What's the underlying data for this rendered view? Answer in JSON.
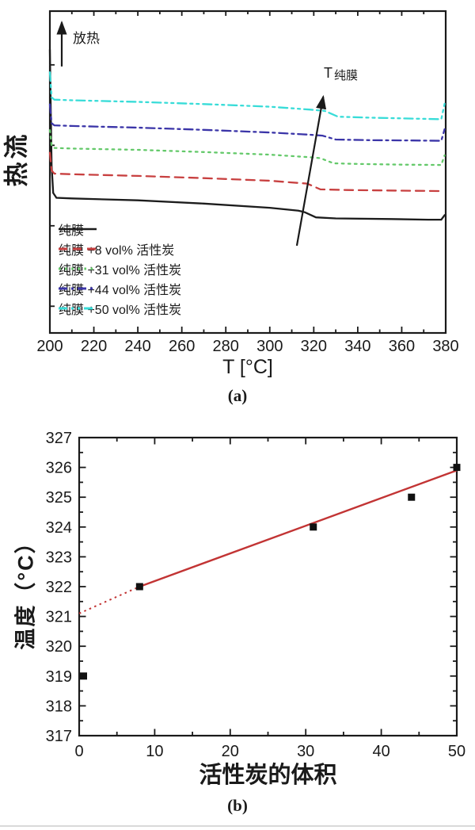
{
  "figure": {
    "background": "#ffffff",
    "ink_color": "#1a1a1a"
  },
  "chart_data": [
    {
      "id": "a",
      "type": "line",
      "caption": "(a)",
      "xlabel": "T [°C]",
      "ylabel": "热流",
      "xlim": [
        200,
        380
      ],
      "ylim": [
        0,
        100
      ],
      "x_ticks": [
        200,
        220,
        240,
        260,
        280,
        300,
        320,
        340,
        360,
        380
      ],
      "x_minor_step": 10,
      "left_tick_values": [
        8.3,
        33.3,
        58.3,
        83.3
      ],
      "grid": false,
      "legend_position": "lower-left",
      "annotations": {
        "exothermic_label": "放热",
        "arrow_label_main": "T",
        "arrow_label_sub": "纯膜"
      },
      "arrows": [
        {
          "name": "exothermic-up-arrow",
          "from": [
            205.4,
            82.8
          ],
          "to": [
            205.4,
            96.5
          ]
        },
        {
          "name": "trend-arrow",
          "from": [
            312.3,
            27.1
          ],
          "to": [
            324.3,
            73.4
          ]
        }
      ],
      "series": [
        {
          "name": "纯膜",
          "color": "#1c1c1c",
          "dash": "solid",
          "points": [
            [
              200,
              88
            ],
            [
              200.8,
              52
            ],
            [
              201.5,
              43.5
            ],
            [
              203,
              42
            ],
            [
              210,
              41.8
            ],
            [
              240,
              41.2
            ],
            [
              270,
              40.2
            ],
            [
              300,
              38.9
            ],
            [
              313,
              38
            ],
            [
              316,
              37.5
            ],
            [
              321,
              35.9
            ],
            [
              330,
              35.6
            ],
            [
              355,
              35.4
            ],
            [
              372,
              35.2
            ],
            [
              378,
              35.2
            ],
            [
              379.5,
              36.6
            ]
          ]
        },
        {
          "name": "纯膜 +8 vol% 活性炭",
          "color": "#c84040",
          "dash": "dashed",
          "points": [
            [
              200,
              56
            ],
            [
              200.8,
              50.5
            ],
            [
              202,
              49.5
            ],
            [
              210,
              49.3
            ],
            [
              240,
              48.8
            ],
            [
              270,
              48.1
            ],
            [
              300,
              47.3
            ],
            [
              313,
              46.6
            ],
            [
              317,
              46.4
            ],
            [
              323,
              44.6
            ],
            [
              335,
              44.4
            ],
            [
              360,
              44.2
            ],
            [
              378,
              44.1
            ]
          ]
        },
        {
          "name": "纯膜 +31 vol% 活性炭",
          "color": "#64c96a",
          "dash": "dotted",
          "points": [
            [
              200,
              63
            ],
            [
              200.8,
              58.2
            ],
            [
              202,
              57.5
            ],
            [
              210,
              57.3
            ],
            [
              240,
              56.9
            ],
            [
              270,
              56.2
            ],
            [
              300,
              55.4
            ],
            [
              318,
              54.6
            ],
            [
              323,
              54.3
            ],
            [
              329,
              52.7
            ],
            [
              340,
              52.5
            ],
            [
              360,
              52.3
            ],
            [
              378,
              52.2
            ],
            [
              379.5,
              55.2
            ]
          ]
        },
        {
          "name": "纯膜 +44 vol% 活性炭",
          "color": "#3b35a8",
          "dash": "dashdot",
          "points": [
            [
              200,
              71
            ],
            [
              200.8,
              65.2
            ],
            [
              202,
              64.5
            ],
            [
              210,
              64.3
            ],
            [
              240,
              63.8
            ],
            [
              270,
              63.1
            ],
            [
              300,
              62.3
            ],
            [
              318,
              61.6
            ],
            [
              324,
              61.3
            ],
            [
              330,
              60.1
            ],
            [
              345,
              59.9
            ],
            [
              365,
              59.8
            ],
            [
              378,
              59.7
            ],
            [
              379.5,
              63.3
            ]
          ]
        },
        {
          "name": "纯膜 +50 vol% 活性炭",
          "color": "#38dcd8",
          "dash": "dashdotdot",
          "points": [
            [
              200,
              81
            ],
            [
              200.8,
              73.2
            ],
            [
              202,
              72.5
            ],
            [
              210,
              72.3
            ],
            [
              240,
              71.8
            ],
            [
              270,
              71.1
            ],
            [
              300,
              70.3
            ],
            [
              318,
              69.4
            ],
            [
              325,
              69.0
            ],
            [
              331,
              67.2
            ],
            [
              345,
              66.9
            ],
            [
              365,
              66.6
            ],
            [
              378,
              66.4
            ],
            [
              379.5,
              71.2
            ]
          ]
        }
      ]
    },
    {
      "id": "b",
      "type": "scatter",
      "caption": "(b)",
      "xlabel": "活性炭的体积",
      "ylabel": "温度（°C）",
      "xlim": [
        0,
        50
      ],
      "ylim": [
        317,
        327
      ],
      "x_ticks": [
        0,
        10,
        20,
        30,
        40,
        50
      ],
      "x_minor_step": 5,
      "y_ticks": [
        317,
        318,
        319,
        320,
        321,
        322,
        323,
        324,
        325,
        326,
        327
      ],
      "y_minor_step": 0.5,
      "grid": false,
      "marker": {
        "shape": "square",
        "size": 9,
        "color": "#111111"
      },
      "scatter": [
        [
          0,
          319
        ],
        [
          8,
          322
        ],
        [
          31,
          324
        ],
        [
          44,
          325
        ],
        [
          50,
          326
        ]
      ],
      "fit_line": {
        "color": "#c23434",
        "solid": [
          [
            8,
            322
          ],
          [
            50,
            325.9
          ]
        ],
        "dotted": [
          [
            0,
            321.1
          ],
          [
            8,
            322
          ]
        ]
      }
    }
  ]
}
